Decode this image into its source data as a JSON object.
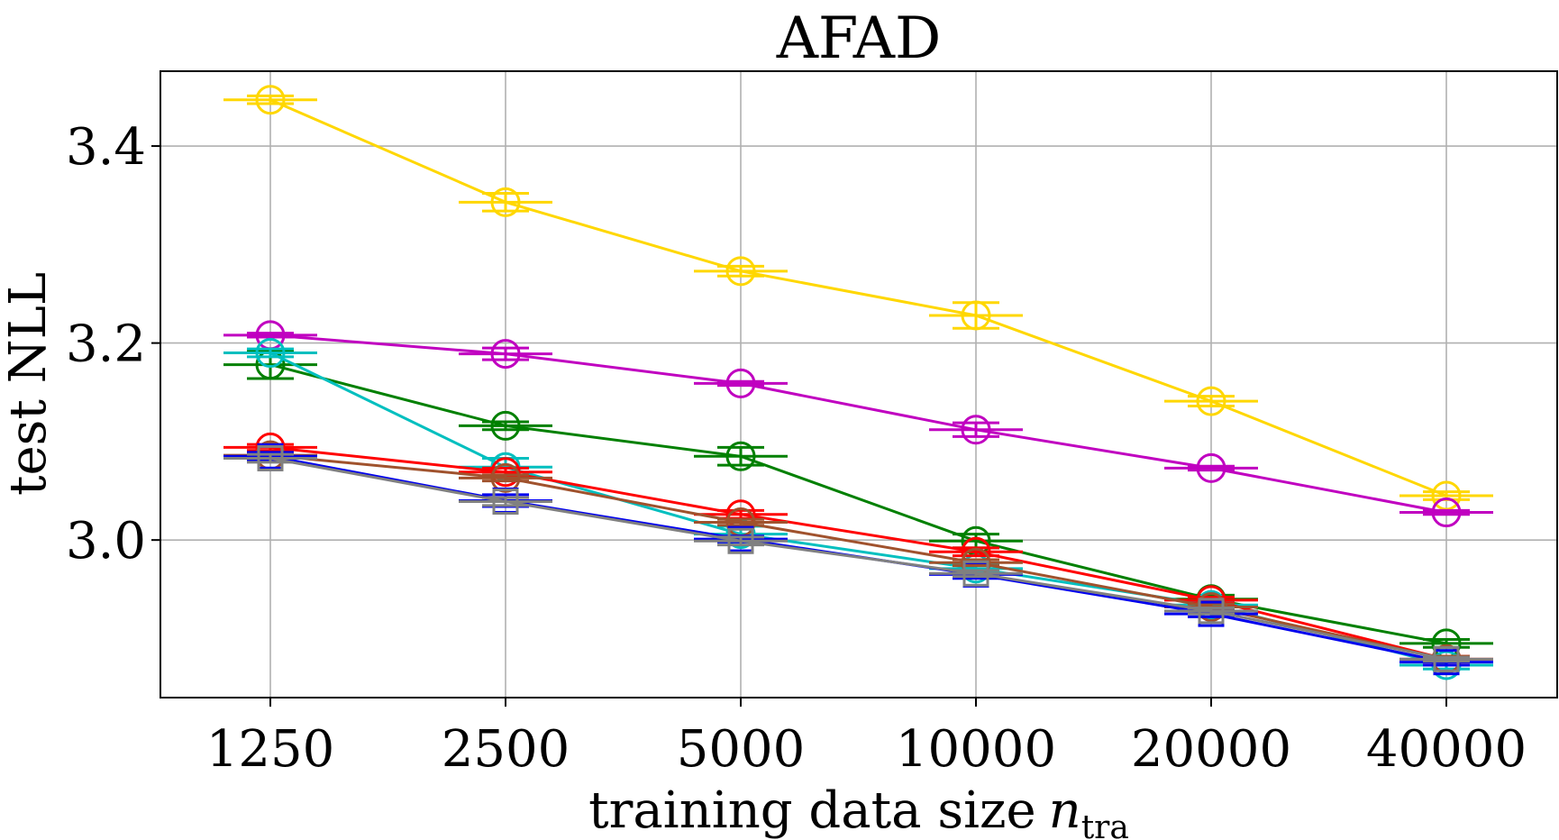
{
  "chart_data": {
    "type": "line",
    "title": "AFAD",
    "xlabel": "training data size",
    "xlabel_symbol": "n",
    "xlabel_subscript": "tra",
    "ylabel": "test NLL",
    "categories": [
      "1250",
      "2500",
      "5000",
      "10000",
      "20000",
      "40000"
    ],
    "yticks": [
      "3.0",
      "3.2",
      "3.4"
    ],
    "ylim": [
      2.84,
      3.476
    ],
    "grid": true,
    "series": [
      {
        "name": "yellow",
        "color": "#ffd700",
        "marker": "circle",
        "values": [
          3.447,
          3.343,
          3.273,
          3.228,
          3.141,
          3.045
        ],
        "err": [
          0.004,
          0.009,
          0.005,
          0.013,
          0.005,
          0.004
        ]
      },
      {
        "name": "magenta",
        "color": "#c000c0",
        "marker": "circle",
        "values": [
          3.208,
          3.189,
          3.159,
          3.112,
          3.073,
          3.028
        ],
        "err": [
          0.002,
          0.006,
          0.002,
          0.007,
          0.002,
          0.002
        ]
      },
      {
        "name": "green",
        "color": "#008000",
        "marker": "circle",
        "values": [
          3.178,
          3.116,
          3.085,
          2.999,
          2.94,
          2.895
        ],
        "err": [
          0.014,
          0.004,
          0.009,
          0.007,
          0.004,
          0.004
        ]
      },
      {
        "name": "cyan",
        "color": "#00bfbf",
        "marker": "circle",
        "values": [
          3.19,
          3.074,
          3.006,
          2.971,
          2.934,
          2.873
        ],
        "err": [
          0.004,
          0.009,
          0.008,
          0.004,
          0.004,
          0.004
        ]
      },
      {
        "name": "red",
        "color": "#ff0000",
        "marker": "circle",
        "values": [
          3.094,
          3.069,
          3.026,
          2.988,
          2.939,
          2.879
        ],
        "err": [
          0.003,
          0.004,
          0.004,
          0.004,
          0.003,
          0.003
        ]
      },
      {
        "name": "brown",
        "color": "#a0522d",
        "marker": "circle",
        "values": [
          3.086,
          3.063,
          3.018,
          2.977,
          2.932,
          2.879
        ],
        "err": [
          0.003,
          0.003,
          0.003,
          0.003,
          0.003,
          0.003
        ]
      },
      {
        "name": "blue",
        "color": "#0000ee",
        "marker": "square",
        "values": [
          3.085,
          3.04,
          3.001,
          2.965,
          2.925,
          2.876
        ],
        "err": [
          0.004,
          0.006,
          0.003,
          0.004,
          0.003,
          0.003
        ]
      },
      {
        "name": "gray",
        "color": "#808080",
        "marker": "square",
        "values": [
          3.083,
          3.039,
          2.999,
          2.966,
          2.928,
          2.879
        ],
        "err": [
          0.004,
          0.004,
          0.004,
          0.003,
          0.003,
          0.002
        ]
      }
    ]
  }
}
